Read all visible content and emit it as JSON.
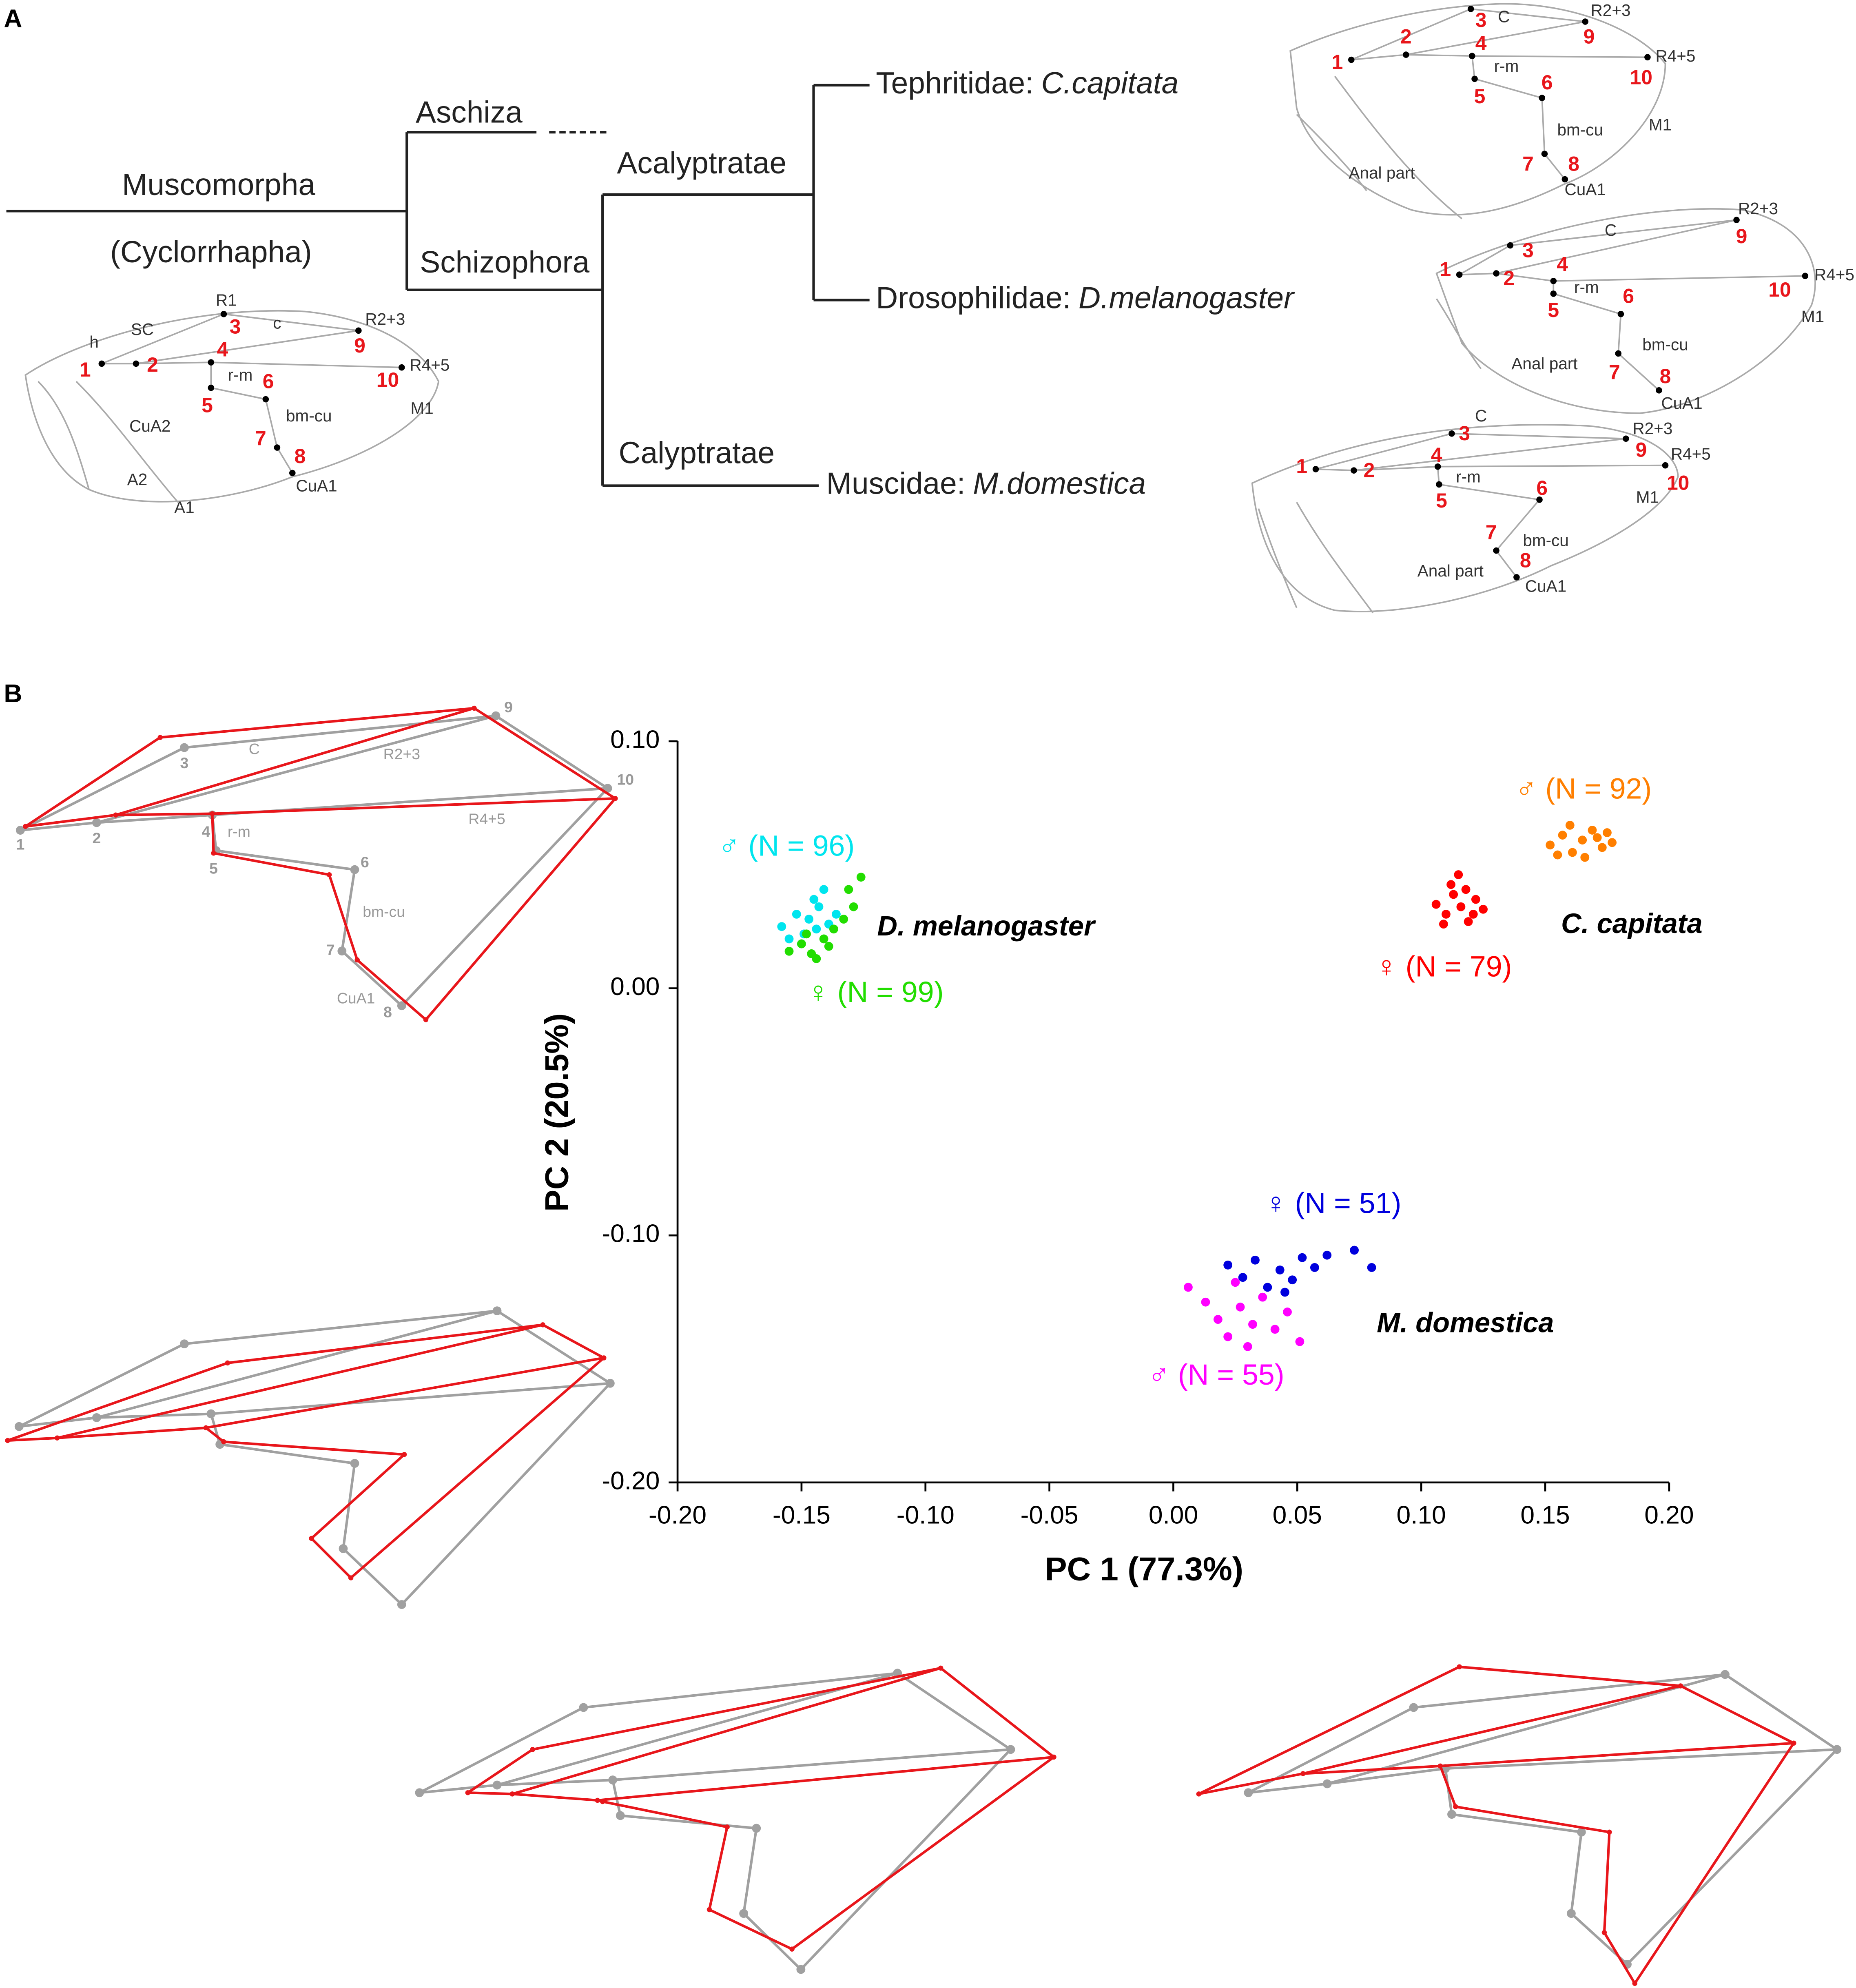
{
  "panel_a": {
    "label": "A",
    "tree": {
      "nodes": [
        "Muscomorpha",
        "(Cyclorrhapha)",
        "Aschiza",
        "Schizophora",
        "Acalyptratae",
        "Calyptratae"
      ],
      "leaves": [
        {
          "family": "Tephritidae:",
          "species": "C.capitata"
        },
        {
          "family": "Drosophilidae:",
          "species": "D.melanogaster"
        },
        {
          "family": "Muscidae:",
          "species": "M.domestica"
        }
      ]
    },
    "wings": [
      {
        "landmarks": [
          1,
          2,
          3,
          4,
          5,
          6,
          7,
          8,
          9,
          10
        ],
        "vein_labels": [
          "R1",
          "SC",
          "h",
          "c",
          "R2+3",
          "R4+5",
          "r-m",
          "bm-cu",
          "M1",
          "CuA2",
          "A2",
          "A1",
          "CuA1"
        ]
      },
      {
        "landmarks": [
          1,
          2,
          3,
          4,
          5,
          6,
          7,
          8,
          9,
          10
        ],
        "vein_labels": [
          "C",
          "R2+3",
          "R4+5",
          "r-m",
          "bm-cu",
          "M1",
          "Anal part",
          "CuA1"
        ]
      },
      {
        "landmarks": [
          1,
          2,
          3,
          4,
          5,
          6,
          7,
          8,
          9,
          10
        ],
        "vein_labels": [
          "C",
          "R2+3",
          "R4+5",
          "r-m",
          "bm-cu",
          "M1",
          "Anal part",
          "CuA1"
        ]
      },
      {
        "landmarks": [
          1,
          2,
          3,
          4,
          5,
          6,
          7,
          8,
          9,
          10
        ],
        "vein_labels": [
          "C",
          "R2+3",
          "R4+5",
          "r-m",
          "bm-cu",
          "M1",
          "Anal part",
          "CuA1"
        ]
      }
    ]
  },
  "panel_b": {
    "label": "B",
    "wing": {
      "landmarks": [
        1,
        2,
        3,
        4,
        5,
        6,
        7,
        8,
        9,
        10
      ],
      "vein_labels": [
        "C",
        "R2+3",
        "R4+5",
        "r-m",
        "bm-cu",
        "CuA1"
      ]
    }
  },
  "chart_data": {
    "type": "scatter",
    "xlabel": "PC 1 (77.3%)",
    "ylabel": "PC 2 (20.5%)",
    "xlim": [
      -0.2,
      0.2
    ],
    "ylim": [
      -0.2,
      0.1
    ],
    "xticks": [
      {
        "value": -0.2,
        "label": "-0.20"
      },
      {
        "value": -0.15,
        "label": "-0.15"
      },
      {
        "value": -0.1,
        "label": "-0.10"
      },
      {
        "value": -0.05,
        "label": "-0.05"
      },
      {
        "value": 0,
        "label": "0.00"
      },
      {
        "value": 0.05,
        "label": "0.05"
      },
      {
        "value": 0.1,
        "label": "0.10"
      },
      {
        "value": 0.15,
        "label": "0.15"
      },
      {
        "value": 0.2,
        "label": "0.20"
      }
    ],
    "yticks": [
      {
        "value": -0.2,
        "label": "-0.20"
      },
      {
        "value": -0.1,
        "label": "-0.10"
      },
      {
        "value": 0,
        "label": "0.00"
      },
      {
        "value": 0.1,
        "label": "0.10"
      }
    ],
    "annotations": [
      "D. melanogaster",
      "C. capitata",
      "M. domestica"
    ],
    "series": [
      {
        "name": "♂ (N = 96)",
        "color": "#00e5ee",
        "x": [
          -0.158,
          -0.152,
          -0.147,
          -0.143,
          -0.139,
          -0.155,
          -0.149,
          -0.145,
          -0.141,
          -0.136,
          -0.15,
          -0.144
        ],
        "values": [
          0.025,
          0.03,
          0.028,
          0.033,
          0.026,
          0.02,
          0.022,
          0.036,
          0.04,
          0.03,
          0.018,
          0.024
        ]
      },
      {
        "name": "♀ (N = 99)",
        "color": "#22dd00",
        "x": [
          -0.155,
          -0.15,
          -0.146,
          -0.141,
          -0.137,
          -0.133,
          -0.129,
          -0.126,
          -0.148,
          -0.139,
          -0.144,
          -0.131
        ],
        "values": [
          0.015,
          0.018,
          0.014,
          0.02,
          0.024,
          0.028,
          0.033,
          0.045,
          0.022,
          0.017,
          0.012,
          0.04
        ]
      },
      {
        "name": "♂ (N = 92)",
        "color": "#ff7f00",
        "x": [
          0.152,
          0.157,
          0.161,
          0.165,
          0.169,
          0.173,
          0.177,
          0.16,
          0.166,
          0.171,
          0.155,
          0.175
        ],
        "values": [
          0.058,
          0.062,
          0.055,
          0.06,
          0.064,
          0.057,
          0.059,
          0.066,
          0.053,
          0.061,
          0.054,
          0.063
        ]
      },
      {
        "name": "♀ (N = 79)",
        "color": "#ff0000",
        "x": [
          0.106,
          0.11,
          0.113,
          0.116,
          0.119,
          0.122,
          0.125,
          0.112,
          0.118,
          0.109,
          0.121,
          0.115
        ],
        "values": [
          0.034,
          0.03,
          0.038,
          0.033,
          0.027,
          0.036,
          0.032,
          0.042,
          0.04,
          0.026,
          0.03,
          0.046
        ]
      },
      {
        "name": "♀ (N = 51)",
        "color": "#0000dd",
        "x": [
          0.022,
          0.028,
          0.033,
          0.038,
          0.043,
          0.048,
          0.052,
          0.057,
          0.062,
          0.073,
          0.08,
          0.045
        ],
        "values": [
          -0.112,
          -0.117,
          -0.11,
          -0.121,
          -0.114,
          -0.118,
          -0.109,
          -0.113,
          -0.108,
          -0.106,
          -0.113,
          -0.123
        ]
      },
      {
        "name": "♂ (N = 55)",
        "color": "#ff00ff",
        "x": [
          0.006,
          0.013,
          0.018,
          0.022,
          0.027,
          0.032,
          0.036,
          0.041,
          0.046,
          0.051,
          0.025,
          0.03
        ],
        "values": [
          -0.121,
          -0.127,
          -0.134,
          -0.141,
          -0.129,
          -0.136,
          -0.125,
          -0.138,
          -0.131,
          -0.143,
          -0.119,
          -0.145
        ]
      }
    ]
  }
}
